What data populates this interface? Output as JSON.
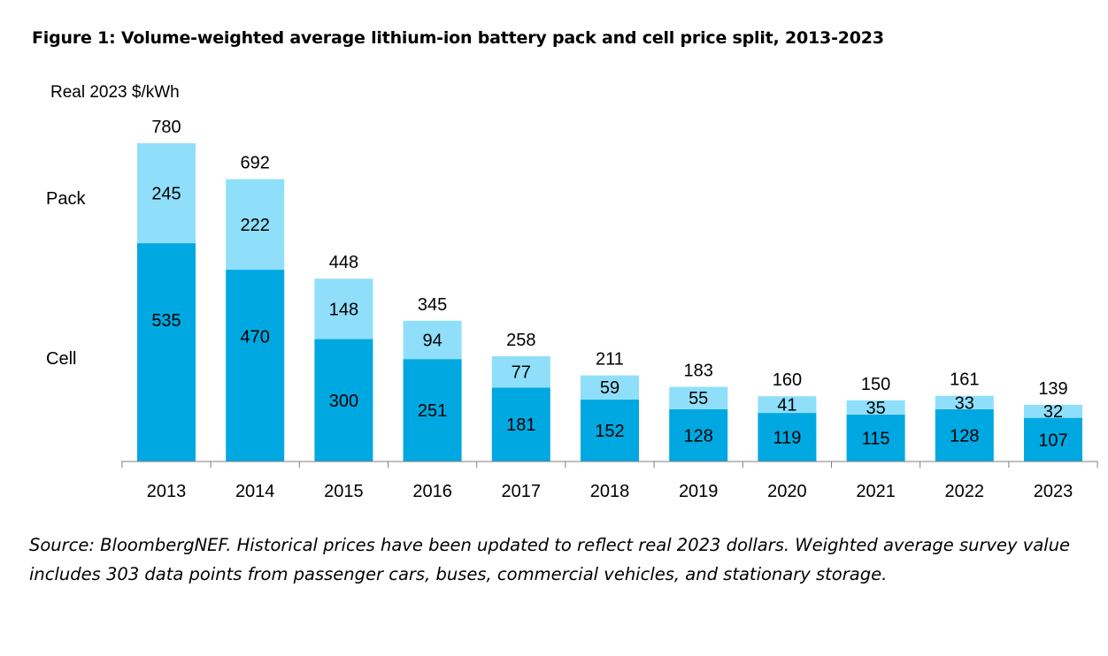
{
  "figure_title": "Figure 1: Volume-weighted average lithium-ion battery pack and cell price split, 2013-2023",
  "source_note": "Source: BloombergNEF. Historical prices have been updated to reflect real 2023 dollars. Weighted average survey value includes 303 data points from passenger cars, buses, commercial vehicles, and stationary storage.",
  "colors": {
    "cell": "#00A8E1",
    "pack": "#8FDFFB",
    "axis": "#7F7F7F",
    "text": "#000000"
  },
  "chart_data": {
    "type": "bar",
    "stacked": true,
    "ylabel": "Real 2023 $/kWh",
    "categories": [
      "2013",
      "2014",
      "2015",
      "2016",
      "2017",
      "2018",
      "2019",
      "2020",
      "2021",
      "2022",
      "2023"
    ],
    "series": [
      {
        "name": "Cell",
        "values": [
          535,
          470,
          300,
          251,
          181,
          152,
          128,
          119,
          115,
          128,
          107
        ]
      },
      {
        "name": "Pack",
        "values": [
          245,
          222,
          148,
          94,
          77,
          59,
          55,
          41,
          35,
          33,
          32
        ]
      }
    ],
    "totals": [
      780,
      692,
      448,
      345,
      258,
      211,
      183,
      160,
      150,
      161,
      139
    ],
    "ylim": [
      0,
      830
    ],
    "grid": false,
    "y_axis_ticks": false,
    "legend": "left side labels (Pack above Cell)"
  }
}
